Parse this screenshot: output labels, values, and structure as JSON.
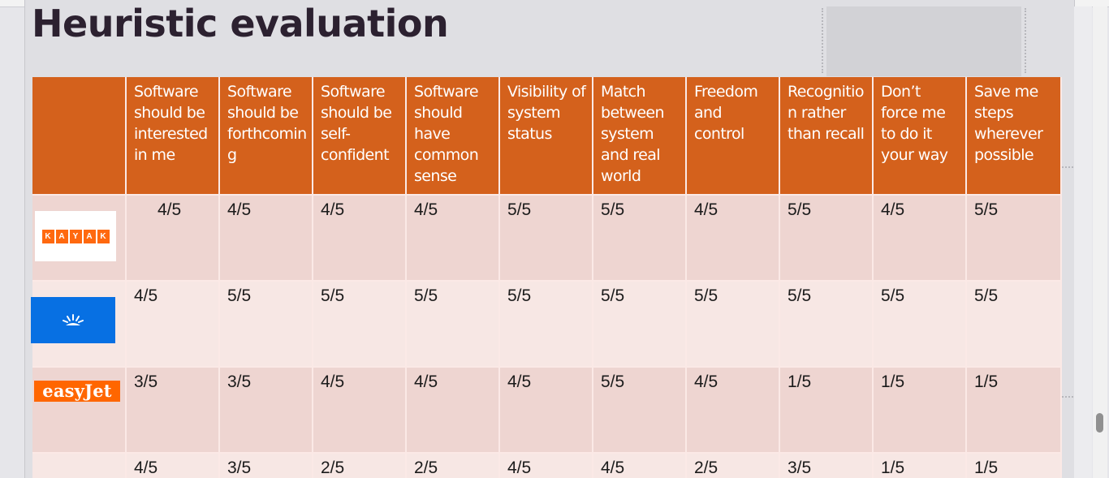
{
  "slide": {
    "title": "Heuristic evaluation"
  },
  "table": {
    "headers": [
      "Software should be interested in me",
      "Software should be forthcoming",
      "Software should be self-confident",
      "Software should have common sense",
      "Visibility of system status",
      "Match between system and real world",
      "Freedom and control",
      "Recognition rather than recall",
      "Don’t force me to do it your way",
      "Save me steps wherever possible"
    ],
    "rows": [
      {
        "logo": "kayak-logo",
        "logo_text": "KAYAK",
        "scores": [
          "4/5",
          "4/5",
          "4/5",
          "4/5",
          "5/5",
          "5/5",
          "4/5",
          "5/5",
          "4/5",
          "5/5"
        ]
      },
      {
        "logo": "skyscanner-logo",
        "scores": [
          "4/5",
          "5/5",
          "5/5",
          "5/5",
          "5/5",
          "5/5",
          "5/5",
          "5/5",
          "5/5",
          "5/5"
        ]
      },
      {
        "logo": "easyjet-logo",
        "logo_text": "easyJet",
        "scores": [
          "3/5",
          "3/5",
          "4/5",
          "4/5",
          "4/5",
          "5/5",
          "4/5",
          "1/5",
          "1/5",
          "1/5"
        ]
      },
      {
        "logo": "",
        "scores": [
          "4/5",
          "3/5",
          "2/5",
          "2/5",
          "4/5",
          "4/5",
          "2/5",
          "3/5",
          "1/5",
          "1/5"
        ]
      }
    ]
  },
  "colors": {
    "header_bg": "#d4611c",
    "row_dark": "#eed5d1",
    "row_light": "#f7e7e4",
    "kayak_orange": "#ff690f",
    "skyscanner_blue": "#0770e3",
    "easyjet_orange": "#ff6600"
  }
}
